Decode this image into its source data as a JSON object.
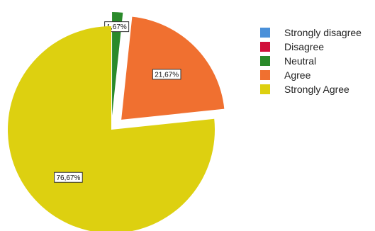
{
  "chart_data": {
    "type": "pie",
    "categories": [
      "Strongly disagree",
      "Disagree",
      "Neutral",
      "Agree",
      "Strongly Agree"
    ],
    "values": [
      0,
      0,
      1.67,
      21.67,
      76.67
    ],
    "data_labels": [
      "",
      "",
      "1,67%",
      "21,67%",
      "76,67%"
    ],
    "colors": [
      "#4a90d9",
      "#d0103a",
      "#2a8a2a",
      "#f07030",
      "#ddd010"
    ],
    "exploded": [
      false,
      false,
      true,
      true,
      false
    ],
    "legend_position": "right"
  }
}
